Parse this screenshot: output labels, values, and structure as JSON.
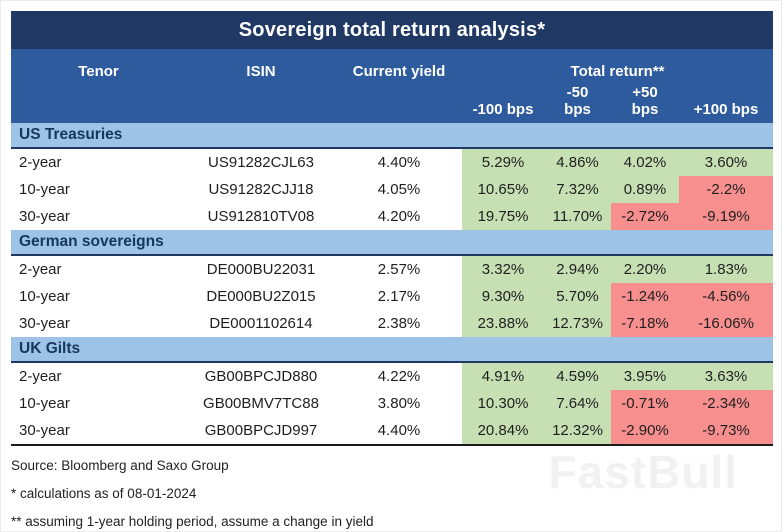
{
  "chart_data": {
    "type": "table",
    "title": "Sovereign total return analysis*",
    "columns": [
      "Tenor",
      "ISIN",
      "Current yield",
      "-100 bps",
      "-50 bps",
      "+50 bps",
      "+100 bps"
    ],
    "column_group_label": "Total return**",
    "groups": [
      {
        "name": "US Treasuries",
        "rows": [
          {
            "tenor": "2-year",
            "isin": "US91282CJL63",
            "current_yield": "4.40%",
            "returns": [
              "5.29%",
              "4.86%",
              "4.02%",
              "3.60%"
            ]
          },
          {
            "tenor": "10-year",
            "isin": "US91282CJJ18",
            "current_yield": "4.05%",
            "returns": [
              "10.65%",
              "7.32%",
              "0.89%",
              "-2.2%"
            ]
          },
          {
            "tenor": "30-year",
            "isin": "US912810TV08",
            "current_yield": "4.20%",
            "returns": [
              "19.75%",
              "11.70%",
              "-2.72%",
              "-9.19%"
            ]
          }
        ]
      },
      {
        "name": "German sovereigns",
        "rows": [
          {
            "tenor": "2-year",
            "isin": "DE000BU22031",
            "current_yield": "2.57%",
            "returns": [
              "3.32%",
              "2.94%",
              "2.20%",
              "1.83%"
            ]
          },
          {
            "tenor": "10-year",
            "isin": "DE000BU2Z015",
            "current_yield": "2.17%",
            "returns": [
              "9.30%",
              "5.70%",
              "-1.24%",
              "-4.56%"
            ]
          },
          {
            "tenor": "30-year",
            "isin": "DE0001102614",
            "current_yield": "2.38%",
            "returns": [
              "23.88%",
              "12.73%",
              "-7.18%",
              "-16.06%"
            ]
          }
        ]
      },
      {
        "name": "UK Gilts",
        "rows": [
          {
            "tenor": "2-year",
            "isin": "GB00BPCJD880",
            "current_yield": "4.22%",
            "returns": [
              "4.91%",
              "4.59%",
              "3.95%",
              "3.63%"
            ]
          },
          {
            "tenor": "10-year",
            "isin": "GB00BMV7TC88",
            "current_yield": "3.80%",
            "returns": [
              "10.30%",
              "7.64%",
              "-0.71%",
              "-2.34%"
            ]
          },
          {
            "tenor": "30-year",
            "isin": "GB00BPCJD997",
            "current_yield": "4.40%",
            "returns": [
              "20.84%",
              "12.32%",
              "-2.90%",
              "-9.73%"
            ]
          }
        ]
      }
    ]
  },
  "header": {
    "tenor": "Tenor",
    "isin": "ISIN",
    "current_yield": "Current yield",
    "total_return": "Total return**",
    "shock_labels": [
      "-100 bps",
      "-50\nbps",
      "+50\nbps",
      "+100 bps"
    ]
  },
  "footer": {
    "source": "Source: Bloomberg and Saxo Group",
    "note_calculations": "* calculations as of 08-01-2024",
    "note_assumptions": "** assuming 1-year holding period, assume a change in yield"
  },
  "watermark": "FastBull",
  "colors": {
    "title_bg": "#1f3864",
    "header_bg": "#2e5b9e",
    "section_bg": "#9dc3e6",
    "positive_cell_bg": "#c6e0b4",
    "negative_cell_bg": "#f78f8e"
  }
}
